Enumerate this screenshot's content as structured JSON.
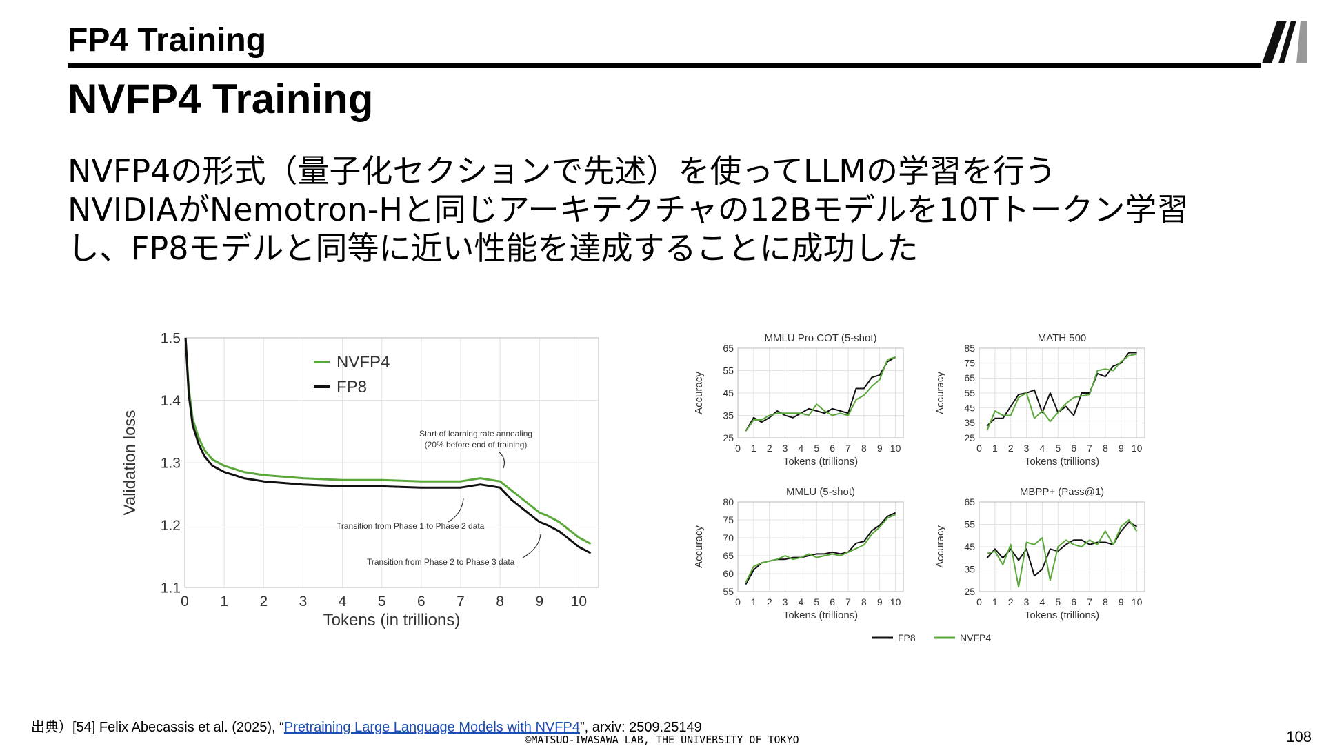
{
  "header": {
    "title": "FP4 Training"
  },
  "logo": {
    "name": "lab-logo"
  },
  "subtitle": "NVFP4 Training",
  "body": {
    "lines": [
      "NVFP4の形式（量子化セクションで先述）を使ってLLMの学習を行う",
      "NVIDIAがNemotron-Hと同じアーキテクチャの12Bモデルを10Tトークン学習",
      "し、FP8モデルと同等に近い性能を達成することに成功した"
    ]
  },
  "colors": {
    "nvfp4": "#5aa83a",
    "fp8": "#111111",
    "link": "#1a4fb4"
  },
  "chart_data": [
    {
      "type": "line",
      "xlabel": "Tokens (in trillions)",
      "ylabel": "Validation loss",
      "xlim": [
        0,
        10.5
      ],
      "ylim": [
        1.1,
        1.5
      ],
      "x_ticks": [
        0,
        1,
        2,
        3,
        4,
        5,
        6,
        7,
        8,
        9,
        10
      ],
      "y_ticks": [
        1.1,
        1.2,
        1.3,
        1.4,
        1.5
      ],
      "grid": true,
      "legend_position": "top-left",
      "x": [
        0.02,
        0.1,
        0.2,
        0.35,
        0.5,
        0.7,
        1.0,
        1.5,
        2.0,
        3.0,
        4.0,
        5.0,
        6.0,
        7.0,
        7.5,
        8.0,
        8.3,
        8.7,
        9.0,
        9.2,
        9.5,
        9.8,
        10.0,
        10.3
      ],
      "series": [
        {
          "name": "NVFP4",
          "values": [
            1.5,
            1.42,
            1.37,
            1.34,
            1.32,
            1.305,
            1.295,
            1.285,
            1.28,
            1.275,
            1.272,
            1.272,
            1.27,
            1.27,
            1.275,
            1.27,
            1.255,
            1.235,
            1.22,
            1.215,
            1.205,
            1.19,
            1.18,
            1.17
          ]
        },
        {
          "name": "FP8",
          "values": [
            1.5,
            1.41,
            1.36,
            1.33,
            1.31,
            1.295,
            1.285,
            1.275,
            1.27,
            1.265,
            1.262,
            1.262,
            1.26,
            1.26,
            1.265,
            1.26,
            1.24,
            1.22,
            1.205,
            1.2,
            1.19,
            1.175,
            1.165,
            1.155
          ]
        }
      ],
      "annotations": [
        "Start of learning rate annealing",
        "(20% before end of training)",
        "Transition from Phase 1 to Phase 2 data",
        "Transition from Phase 2 to Phase 3 data"
      ]
    },
    {
      "type": "line",
      "title": "MMLU Pro COT (5-shot)",
      "xlabel": "Tokens (trillions)",
      "ylabel": "Accuracy",
      "xlim": [
        0,
        10.5
      ],
      "ylim": [
        25,
        65
      ],
      "y_ticks": [
        25,
        35,
        45,
        55,
        65
      ],
      "x_ticks": [
        0,
        1,
        2,
        3,
        4,
        5,
        6,
        7,
        8,
        9,
        10
      ],
      "x": [
        0.5,
        1,
        1.5,
        2,
        2.5,
        3,
        3.5,
        4,
        4.5,
        5,
        5.5,
        6,
        6.5,
        7,
        7.5,
        8,
        8.5,
        9,
        9.5,
        10
      ],
      "series": [
        {
          "name": "FP8",
          "values": [
            28,
            34,
            32,
            34,
            37,
            35,
            34,
            36,
            38,
            37,
            36,
            38,
            37,
            36,
            47,
            47,
            52,
            53,
            59,
            61
          ]
        },
        {
          "name": "NVFP4",
          "values": [
            28,
            33,
            33,
            35,
            36,
            36,
            36,
            36,
            35,
            40,
            37,
            35,
            36,
            35,
            42,
            44,
            48,
            51,
            60,
            61
          ]
        }
      ]
    },
    {
      "type": "line",
      "title": "MATH 500",
      "xlabel": "Tokens (trillions)",
      "ylabel": "Accuracy",
      "xlim": [
        0,
        10.5
      ],
      "ylim": [
        25,
        85
      ],
      "y_ticks": [
        25,
        35,
        45,
        55,
        65,
        75,
        85
      ],
      "x_ticks": [
        0,
        1,
        2,
        3,
        4,
        5,
        6,
        7,
        8,
        9,
        10
      ],
      "x": [
        0.5,
        1,
        1.5,
        2,
        2.5,
        3,
        3.5,
        4,
        4.5,
        5,
        5.5,
        6,
        6.5,
        7,
        7.5,
        8,
        8.5,
        9,
        9.5,
        10
      ],
      "series": [
        {
          "name": "FP8",
          "values": [
            33,
            38,
            38,
            46,
            54,
            55,
            57,
            42,
            55,
            42,
            46,
            40,
            55,
            55,
            68,
            66,
            73,
            75,
            82,
            82
          ]
        },
        {
          "name": "NVFP4",
          "values": [
            30,
            43,
            40,
            40,
            52,
            55,
            38,
            43,
            36,
            42,
            48,
            52,
            53,
            54,
            70,
            71,
            70,
            76,
            80,
            81
          ]
        }
      ]
    },
    {
      "type": "line",
      "title": "MMLU (5-shot)",
      "xlabel": "Tokens (trillions)",
      "ylabel": "Accuracy",
      "xlim": [
        0,
        10.5
      ],
      "ylim": [
        55,
        80
      ],
      "y_ticks": [
        55,
        60,
        65,
        70,
        75,
        80
      ],
      "x_ticks": [
        0,
        1,
        2,
        3,
        4,
        5,
        6,
        7,
        8,
        9,
        10
      ],
      "x": [
        0.5,
        1,
        1.5,
        2,
        2.5,
        3,
        3.5,
        4,
        4.5,
        5,
        5.5,
        6,
        6.5,
        7,
        7.5,
        8,
        8.5,
        9,
        9.5,
        10
      ],
      "series": [
        {
          "name": "FP8",
          "values": [
            57,
            61,
            63,
            63.5,
            64,
            64,
            64.5,
            64.5,
            65,
            65.5,
            65.5,
            66,
            65.5,
            66,
            68.5,
            69,
            72,
            73.5,
            76,
            77
          ]
        },
        {
          "name": "NVFP4",
          "values": [
            57.5,
            62,
            63,
            63.5,
            64,
            65,
            64,
            64.5,
            65.5,
            64.5,
            65,
            65.5,
            65,
            66,
            67,
            68,
            71,
            73,
            75.5,
            76.5
          ]
        }
      ]
    },
    {
      "type": "line",
      "title": "MBPP+ (Pass@1)",
      "xlabel": "Tokens (trillions)",
      "ylabel": "Accuracy",
      "xlim": [
        0,
        10.5
      ],
      "ylim": [
        25,
        65
      ],
      "y_ticks": [
        25,
        35,
        45,
        55,
        65
      ],
      "x_ticks": [
        0,
        1,
        2,
        3,
        4,
        5,
        6,
        7,
        8,
        9,
        10
      ],
      "x": [
        0.5,
        1,
        1.5,
        2,
        2.5,
        3,
        3.5,
        4,
        4.5,
        5,
        5.5,
        6,
        6.5,
        7,
        7.5,
        8,
        8.5,
        9,
        9.5,
        10
      ],
      "series": [
        {
          "name": "FP8",
          "values": [
            40,
            44,
            40,
            44,
            39,
            44,
            32,
            35,
            44,
            43,
            46,
            48,
            48,
            46,
            47,
            47,
            46,
            52,
            56,
            54
          ]
        },
        {
          "name": "NVFP4",
          "values": [
            42,
            43,
            37,
            46,
            27,
            47,
            46,
            49,
            30,
            45,
            48,
            46,
            45,
            48,
            46,
            52,
            46,
            54,
            57,
            52
          ]
        }
      ]
    }
  ],
  "small_legend": [
    "FP8",
    "NVFP4"
  ],
  "citation": {
    "prefix": "出典）[54] Felix Abecassis et al. (2025), “",
    "link_text": "Pretraining Large Language Models with NVFP4",
    "suffix": "”, arxiv: 2509.25149"
  },
  "copyright": "©MATSUO-IWASAWA LAB, THE UNIVERSITY OF TOKYO",
  "page_number": "108"
}
